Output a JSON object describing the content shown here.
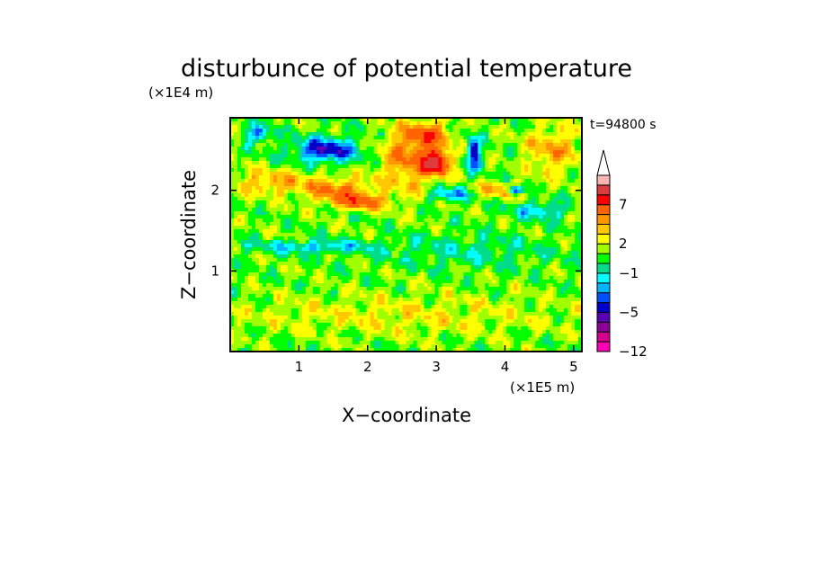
{
  "chart_data": {
    "type": "heatmap",
    "title": "disturbunce of potential temperature",
    "xlabel": "X−coordinate",
    "ylabel": "Z−coordinate",
    "x_scale_note": "(×1E5 m)",
    "y_scale_note": "(×1E4 m)",
    "time_label": "t=94800 s",
    "xlim": [
      0,
      5.12
    ],
    "ylim": [
      0,
      2.9
    ],
    "x_ticks": [
      {
        "value": 1,
        "label": "1"
      },
      {
        "value": 2,
        "label": "2"
      },
      {
        "value": 3,
        "label": "3"
      },
      {
        "value": 4,
        "label": "4"
      },
      {
        "value": 5,
        "label": "5"
      }
    ],
    "y_ticks": [
      {
        "value": 1,
        "label": "1"
      },
      {
        "value": 2,
        "label": "2"
      }
    ],
    "colorbar": {
      "levels": [
        -12,
        -10,
        -8,
        -6,
        -5,
        -4,
        -3,
        -2,
        -1,
        0,
        1,
        2,
        3,
        4,
        5,
        7,
        9,
        11
      ],
      "colors": [
        "#ff00b4",
        "#d2008c",
        "#8c0096",
        "#5a00b4",
        "#0000c8",
        "#0050ff",
        "#00b4ff",
        "#00ffff",
        "#00dc8c",
        "#00ff00",
        "#a0ff00",
        "#ffff00",
        "#ffc800",
        "#ff9600",
        "#ff6400",
        "#ff0000",
        "#dc3c3c",
        "#ffb4b4"
      ],
      "tick_labels": [
        {
          "level": -12,
          "label": "−12"
        },
        {
          "level": -5,
          "label": "−5"
        },
        {
          "level": -1,
          "label": "−1"
        },
        {
          "level": 2,
          "label": "2"
        },
        {
          "level": 7,
          "label": "7"
        }
      ],
      "extend": "max"
    },
    "features": [
      {
        "x": 0.6,
        "z": 2.1,
        "sx": 0.6,
        "sz": 0.15,
        "amp": 3
      },
      {
        "x": 1.6,
        "z": 2.0,
        "sx": 0.5,
        "sz": 0.15,
        "amp": 4
      },
      {
        "x": 1.9,
        "z": 1.85,
        "sx": 0.4,
        "sz": 0.1,
        "amp": 4
      },
      {
        "x": 2.6,
        "z": 2.4,
        "sx": 0.4,
        "sz": 0.4,
        "amp": 4
      },
      {
        "x": 3.0,
        "z": 2.35,
        "sx": 0.2,
        "sz": 0.15,
        "amp": 8
      },
      {
        "x": 2.9,
        "z": 2.7,
        "sx": 0.3,
        "sz": 0.15,
        "amp": 4
      },
      {
        "x": 3.9,
        "z": 2.0,
        "sx": 0.35,
        "sz": 0.1,
        "amp": 3
      },
      {
        "x": 4.7,
        "z": 2.5,
        "sx": 0.4,
        "sz": 0.3,
        "amp": 3
      },
      {
        "x": 1.4,
        "z": 2.5,
        "sx": 0.45,
        "sz": 0.15,
        "amp": -6
      },
      {
        "x": 0.4,
        "z": 2.7,
        "sx": 0.2,
        "sz": 0.1,
        "amp": -4
      },
      {
        "x": 3.55,
        "z": 2.45,
        "sx": 0.1,
        "sz": 0.2,
        "amp": -6
      },
      {
        "x": 4.15,
        "z": 2.0,
        "sx": 0.1,
        "sz": 0.05,
        "amp": -8
      },
      {
        "x": 3.2,
        "z": 1.95,
        "sx": 0.3,
        "sz": 0.08,
        "amp": -4
      },
      {
        "x": 4.5,
        "z": 1.75,
        "sx": 0.4,
        "sz": 0.1,
        "amp": -3
      },
      {
        "x": 1.2,
        "z": 1.3,
        "sx": 0.9,
        "sz": 0.08,
        "amp": -3
      },
      {
        "x": 3.5,
        "z": 1.25,
        "sx": 1.2,
        "sz": 0.2,
        "amp": -1.5
      },
      {
        "x": 2.5,
        "z": 0.45,
        "sx": 2.5,
        "sz": 0.25,
        "amp": 1.5
      }
    ]
  }
}
